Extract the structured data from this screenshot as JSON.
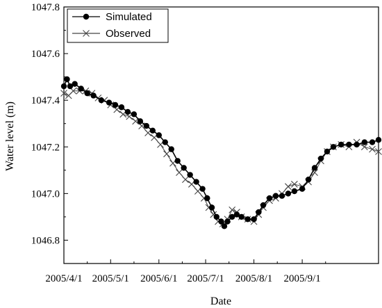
{
  "chart_data": {
    "type": "line",
    "xlabel": "Date",
    "ylabel": "Water level (m)",
    "ylim": [
      1046.7,
      1047.8
    ],
    "yticks": [
      "1046.8",
      "1047.0",
      "1047.2",
      "1047.4",
      "1047.6",
      "1047.8"
    ],
    "xlim": [
      "2005-04-01",
      "2005-10-20"
    ],
    "xticks": [
      {
        "date": "2005-04-01",
        "label": "2005/4/1"
      },
      {
        "date": "2005-05-01",
        "label": "2005/5/1"
      },
      {
        "date": "2005-06-01",
        "label": "2005/6/1"
      },
      {
        "date": "2005-07-01",
        "label": "2005/7/1"
      },
      {
        "date": "2005-08-01",
        "label": "2005/8/1"
      },
      {
        "date": "2005-09-01",
        "label": "2005/9/1"
      }
    ],
    "legend": {
      "placement": "top-left"
    },
    "series": [
      {
        "name": "Simulated",
        "marker": "filled-circle",
        "color": "#000000",
        "points": [
          [
            "2005-04-01",
            1047.46
          ],
          [
            "2005-04-03",
            1047.49
          ],
          [
            "2005-04-05",
            1047.46
          ],
          [
            "2005-04-08",
            1047.47
          ],
          [
            "2005-04-12",
            1047.45
          ],
          [
            "2005-04-16",
            1047.43
          ],
          [
            "2005-04-20",
            1047.42
          ],
          [
            "2005-04-25",
            1047.4
          ],
          [
            "2005-04-30",
            1047.39
          ],
          [
            "2005-05-04",
            1047.38
          ],
          [
            "2005-05-08",
            1047.37
          ],
          [
            "2005-05-12",
            1047.35
          ],
          [
            "2005-05-16",
            1047.34
          ],
          [
            "2005-05-20",
            1047.31
          ],
          [
            "2005-05-24",
            1047.29
          ],
          [
            "2005-05-28",
            1047.27
          ],
          [
            "2005-06-01",
            1047.25
          ],
          [
            "2005-06-05",
            1047.22
          ],
          [
            "2005-06-09",
            1047.19
          ],
          [
            "2005-06-13",
            1047.14
          ],
          [
            "2005-06-17",
            1047.11
          ],
          [
            "2005-06-21",
            1047.08
          ],
          [
            "2005-06-25",
            1047.05
          ],
          [
            "2005-06-29",
            1047.02
          ],
          [
            "2005-07-02",
            1046.98
          ],
          [
            "2005-07-05",
            1046.94
          ],
          [
            "2005-07-08",
            1046.9
          ],
          [
            "2005-07-11",
            1046.88
          ],
          [
            "2005-07-13",
            1046.86
          ],
          [
            "2005-07-15",
            1046.88
          ],
          [
            "2005-07-18",
            1046.9
          ],
          [
            "2005-07-21",
            1046.91
          ],
          [
            "2005-07-24",
            1046.9
          ],
          [
            "2005-07-28",
            1046.89
          ],
          [
            "2005-08-01",
            1046.89
          ],
          [
            "2005-08-04",
            1046.92
          ],
          [
            "2005-08-07",
            1046.95
          ],
          [
            "2005-08-11",
            1046.98
          ],
          [
            "2005-08-15",
            1046.99
          ],
          [
            "2005-08-19",
            1046.99
          ],
          [
            "2005-08-23",
            1047.0
          ],
          [
            "2005-08-27",
            1047.01
          ],
          [
            "2005-09-01",
            1047.02
          ],
          [
            "2005-09-05",
            1047.06
          ],
          [
            "2005-09-09",
            1047.11
          ],
          [
            "2005-09-13",
            1047.15
          ],
          [
            "2005-09-17",
            1047.18
          ],
          [
            "2005-09-21",
            1047.2
          ],
          [
            "2005-09-26",
            1047.21
          ],
          [
            "2005-10-01",
            1047.21
          ],
          [
            "2005-10-06",
            1047.21
          ],
          [
            "2005-10-11",
            1047.22
          ],
          [
            "2005-10-16",
            1047.22
          ],
          [
            "2005-10-20",
            1047.23
          ]
        ]
      },
      {
        "name": "Observed",
        "marker": "x",
        "color": "#444444",
        "points": [
          [
            "2005-04-01",
            1047.43
          ],
          [
            "2005-04-04",
            1047.42
          ],
          [
            "2005-04-07",
            1047.44
          ],
          [
            "2005-04-11",
            1047.44
          ],
          [
            "2005-04-15",
            1047.44
          ],
          [
            "2005-04-19",
            1047.43
          ],
          [
            "2005-04-23",
            1047.41
          ],
          [
            "2005-04-27",
            1047.4
          ],
          [
            "2005-05-01",
            1047.38
          ],
          [
            "2005-05-05",
            1047.36
          ],
          [
            "2005-05-09",
            1047.34
          ],
          [
            "2005-05-13",
            1047.33
          ],
          [
            "2005-05-17",
            1047.31
          ],
          [
            "2005-05-21",
            1047.29
          ],
          [
            "2005-05-25",
            1047.26
          ],
          [
            "2005-05-29",
            1047.24
          ],
          [
            "2005-06-02",
            1047.21
          ],
          [
            "2005-06-06",
            1047.17
          ],
          [
            "2005-06-10",
            1047.13
          ],
          [
            "2005-06-14",
            1047.09
          ],
          [
            "2005-06-18",
            1047.06
          ],
          [
            "2005-06-22",
            1047.04
          ],
          [
            "2005-06-26",
            1047.01
          ],
          [
            "2005-06-30",
            1046.98
          ],
          [
            "2005-07-03",
            1046.94
          ],
          [
            "2005-07-06",
            1046.91
          ],
          [
            "2005-07-09",
            1046.88
          ],
          [
            "2005-07-12",
            1046.87
          ],
          [
            "2005-07-15",
            1046.89
          ],
          [
            "2005-07-18",
            1046.93
          ],
          [
            "2005-07-21",
            1046.92
          ],
          [
            "2005-07-24",
            1046.9
          ],
          [
            "2005-07-28",
            1046.89
          ],
          [
            "2005-08-01",
            1046.88
          ],
          [
            "2005-08-04",
            1046.91
          ],
          [
            "2005-08-07",
            1046.94
          ],
          [
            "2005-08-11",
            1046.97
          ],
          [
            "2005-08-15",
            1046.98
          ],
          [
            "2005-08-19",
            1047.0
          ],
          [
            "2005-08-23",
            1047.03
          ],
          [
            "2005-08-27",
            1047.04
          ],
          [
            "2005-09-01",
            1047.03
          ],
          [
            "2005-09-05",
            1047.05
          ],
          [
            "2005-09-09",
            1047.09
          ],
          [
            "2005-09-13",
            1047.14
          ],
          [
            "2005-09-17",
            1047.18
          ],
          [
            "2005-09-21",
            1047.2
          ],
          [
            "2005-09-26",
            1047.21
          ],
          [
            "2005-10-01",
            1047.2
          ],
          [
            "2005-10-06",
            1047.22
          ],
          [
            "2005-10-11",
            1047.2
          ],
          [
            "2005-10-16",
            1047.19
          ],
          [
            "2005-10-20",
            1047.18
          ]
        ]
      }
    ]
  }
}
